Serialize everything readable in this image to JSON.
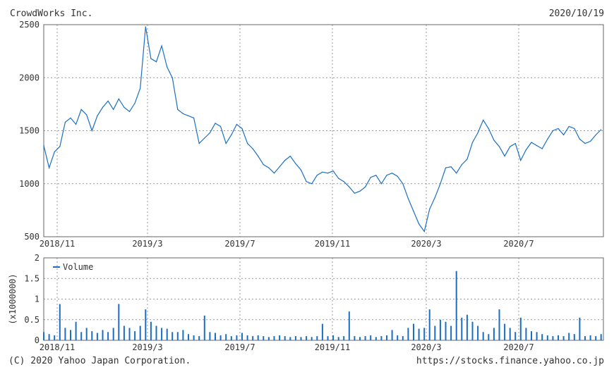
{
  "header": {
    "company": "CrowdWorks Inc.",
    "date": "2020/10/19"
  },
  "footer": {
    "copyright": "(C) 2020 Yahoo Japan Corporation.",
    "url": "https://stocks.finance.yahoo.co.jp"
  },
  "colors": {
    "line": "#1a6fc4",
    "grid": "#999999",
    "frame": "#666666"
  },
  "chart_data": [
    {
      "type": "line",
      "title": "",
      "xlabel": "",
      "ylabel": "",
      "x_tick_labels": [
        "2018/11",
        "2019/3",
        "2019/7",
        "2019/11",
        "2020/3",
        "2020/7"
      ],
      "y_ticks": [
        500,
        1000,
        1500,
        2000,
        2500
      ],
      "ylim": [
        500,
        2500
      ],
      "xlim": [
        "2018-10-19",
        "2020-10-19"
      ],
      "grid": true,
      "series": [
        {
          "x": [
            "2018-10-19",
            "2018-10-26",
            "2018-11-02",
            "2018-11-09",
            "2018-11-16",
            "2018-11-23",
            "2018-11-30",
            "2018-12-07",
            "2018-12-14",
            "2018-12-21",
            "2018-12-28",
            "2019-01-04",
            "2019-01-11",
            "2019-01-18",
            "2019-01-25",
            "2019-02-01",
            "2019-02-08",
            "2019-02-15",
            "2019-02-22",
            "2019-03-01",
            "2019-03-08",
            "2019-03-15",
            "2019-03-22",
            "2019-03-29",
            "2019-04-05",
            "2019-04-12",
            "2019-04-19",
            "2019-04-26",
            "2019-05-03",
            "2019-05-10",
            "2019-05-17",
            "2019-05-24",
            "2019-05-31",
            "2019-06-07",
            "2019-06-14",
            "2019-06-21",
            "2019-06-28",
            "2019-07-05",
            "2019-07-12",
            "2019-07-19",
            "2019-07-26",
            "2019-08-02",
            "2019-08-09",
            "2019-08-16",
            "2019-08-23",
            "2019-08-30",
            "2019-09-06",
            "2019-09-13",
            "2019-09-20",
            "2019-09-27",
            "2019-10-04",
            "2019-10-11",
            "2019-10-18",
            "2019-10-25",
            "2019-11-01",
            "2019-11-08",
            "2019-11-15",
            "2019-11-22",
            "2019-11-29",
            "2019-12-06",
            "2019-12-13",
            "2019-12-20",
            "2019-12-27",
            "2020-01-03",
            "2020-01-10",
            "2020-01-17",
            "2020-01-24",
            "2020-01-31",
            "2020-02-07",
            "2020-02-14",
            "2020-02-21",
            "2020-02-28",
            "2020-03-06",
            "2020-03-13",
            "2020-03-20",
            "2020-03-27",
            "2020-04-03",
            "2020-04-10",
            "2020-04-17",
            "2020-04-24",
            "2020-05-01",
            "2020-05-08",
            "2020-05-15",
            "2020-05-22",
            "2020-05-29",
            "2020-06-05",
            "2020-06-12",
            "2020-06-19",
            "2020-06-26",
            "2020-07-03",
            "2020-07-10",
            "2020-07-17",
            "2020-07-24",
            "2020-07-31",
            "2020-08-07",
            "2020-08-14",
            "2020-08-21",
            "2020-08-28",
            "2020-09-04",
            "2020-09-11",
            "2020-09-18",
            "2020-09-25",
            "2020-10-02",
            "2020-10-09",
            "2020-10-16"
          ],
          "y": [
            1360,
            1150,
            1300,
            1350,
            1580,
            1620,
            1560,
            1700,
            1650,
            1500,
            1640,
            1720,
            1780,
            1700,
            1800,
            1720,
            1680,
            1760,
            1900,
            2480,
            2180,
            2150,
            2300,
            2100,
            2000,
            1700,
            1660,
            1640,
            1620,
            1380,
            1430,
            1480,
            1570,
            1540,
            1380,
            1460,
            1560,
            1520,
            1380,
            1330,
            1260,
            1180,
            1150,
            1100,
            1160,
            1220,
            1260,
            1190,
            1130,
            1020,
            1000,
            1080,
            1110,
            1100,
            1120,
            1050,
            1020,
            970,
            910,
            930,
            970,
            1060,
            1080,
            1000,
            1080,
            1100,
            1070,
            1000,
            860,
            740,
            620,
            550,
            760,
            870,
            1000,
            1150,
            1160,
            1100,
            1180,
            1230,
            1390,
            1480,
            1600,
            1520,
            1410,
            1350,
            1260,
            1350,
            1380,
            1220,
            1320,
            1390,
            1360,
            1330,
            1420,
            1500,
            1520,
            1460,
            1540,
            1520,
            1420,
            1380,
            1400,
            1460,
            1510
          ]
        }
      ]
    },
    {
      "type": "bar",
      "title": "",
      "xlabel": "",
      "ylabel": "(x1000000)",
      "legend": "Volume",
      "legend_position": "top-left",
      "x_tick_labels": [
        "2018/11",
        "2019/3",
        "2019/7",
        "2019/11",
        "2020/3",
        "2020/7"
      ],
      "y_tick_labels": [
        "0",
        "0.5",
        "1",
        "1.5",
        "2"
      ],
      "ylim": [
        0,
        2
      ],
      "xlim": [
        "2018-10-19",
        "2020-10-19"
      ],
      "grid": true,
      "series": [
        {
          "name": "Volume",
          "x": [
            "2018-10-19",
            "2018-10-26",
            "2018-11-02",
            "2018-11-09",
            "2018-11-16",
            "2018-11-23",
            "2018-11-30",
            "2018-12-07",
            "2018-12-14",
            "2018-12-21",
            "2018-12-28",
            "2019-01-04",
            "2019-01-11",
            "2019-01-18",
            "2019-01-25",
            "2019-02-01",
            "2019-02-08",
            "2019-02-15",
            "2019-02-22",
            "2019-03-01",
            "2019-03-08",
            "2019-03-15",
            "2019-03-22",
            "2019-03-29",
            "2019-04-05",
            "2019-04-12",
            "2019-04-19",
            "2019-04-26",
            "2019-05-03",
            "2019-05-10",
            "2019-05-17",
            "2019-05-24",
            "2019-05-31",
            "2019-06-07",
            "2019-06-14",
            "2019-06-21",
            "2019-06-28",
            "2019-07-05",
            "2019-07-12",
            "2019-07-19",
            "2019-07-26",
            "2019-08-02",
            "2019-08-09",
            "2019-08-16",
            "2019-08-23",
            "2019-08-30",
            "2019-09-06",
            "2019-09-13",
            "2019-09-20",
            "2019-09-27",
            "2019-10-04",
            "2019-10-11",
            "2019-10-18",
            "2019-10-25",
            "2019-11-01",
            "2019-11-08",
            "2019-11-15",
            "2019-11-22",
            "2019-11-29",
            "2019-12-06",
            "2019-12-13",
            "2019-12-20",
            "2019-12-27",
            "2020-01-03",
            "2020-01-10",
            "2020-01-17",
            "2020-01-24",
            "2020-01-31",
            "2020-02-07",
            "2020-02-14",
            "2020-02-21",
            "2020-02-28",
            "2020-03-06",
            "2020-03-13",
            "2020-03-20",
            "2020-03-27",
            "2020-04-03",
            "2020-04-10",
            "2020-04-17",
            "2020-04-24",
            "2020-05-01",
            "2020-05-08",
            "2020-05-15",
            "2020-05-22",
            "2020-05-29",
            "2020-06-05",
            "2020-06-12",
            "2020-06-19",
            "2020-06-26",
            "2020-07-03",
            "2020-07-10",
            "2020-07-17",
            "2020-07-24",
            "2020-07-31",
            "2020-08-07",
            "2020-08-14",
            "2020-08-21",
            "2020-08-28",
            "2020-09-04",
            "2020-09-11",
            "2020-09-18",
            "2020-09-25",
            "2020-10-02",
            "2020-10-09",
            "2020-10-16"
          ],
          "values": [
            0.2,
            0.15,
            0.12,
            0.88,
            0.3,
            0.25,
            0.45,
            0.2,
            0.3,
            0.22,
            0.18,
            0.25,
            0.2,
            0.3,
            0.88,
            0.35,
            0.3,
            0.22,
            0.35,
            0.75,
            0.45,
            0.35,
            0.3,
            0.28,
            0.2,
            0.2,
            0.25,
            0.15,
            0.12,
            0.1,
            0.6,
            0.2,
            0.18,
            0.12,
            0.15,
            0.1,
            0.12,
            0.18,
            0.12,
            0.1,
            0.12,
            0.1,
            0.08,
            0.1,
            0.12,
            0.1,
            0.08,
            0.1,
            0.08,
            0.1,
            0.08,
            0.1,
            0.4,
            0.1,
            0.12,
            0.08,
            0.1,
            0.7,
            0.1,
            0.08,
            0.1,
            0.12,
            0.08,
            0.1,
            0.12,
            0.25,
            0.12,
            0.1,
            0.3,
            0.4,
            0.28,
            0.3,
            0.75,
            0.35,
            0.5,
            0.45,
            0.35,
            1.68,
            0.55,
            0.62,
            0.45,
            0.35,
            0.2,
            0.15,
            0.3,
            0.75,
            0.4,
            0.3,
            0.2,
            0.55,
            0.3,
            0.22,
            0.2,
            0.15,
            0.12,
            0.1,
            0.12,
            0.1,
            0.18,
            0.15,
            0.55,
            0.1,
            0.12,
            0.1,
            0.15
          ]
        }
      ]
    }
  ]
}
